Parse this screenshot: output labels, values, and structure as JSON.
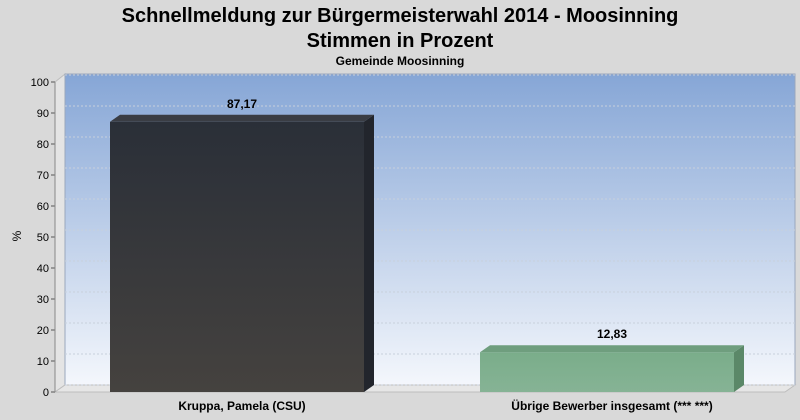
{
  "chart_data": {
    "type": "bar",
    "title": "Schnellmeldung zur Bürgermeisterwahl 2014 - Moosinning",
    "title2": "Stimmen in Prozent",
    "subtitle": "Gemeinde Moosinning",
    "ylabel": "%",
    "ylim": [
      0,
      100
    ],
    "yticks": [
      0,
      10,
      20,
      30,
      40,
      50,
      60,
      70,
      80,
      90,
      100
    ],
    "grid": true,
    "categories": [
      "Kruppa, Pamela (CSU)",
      "Übrige Bewerber insgesamt (***  ***)"
    ],
    "values": [
      87.17,
      12.83
    ],
    "value_labels": [
      "87,17",
      "12,83"
    ],
    "colors": [
      "#33343a",
      "#7fae8e"
    ]
  }
}
